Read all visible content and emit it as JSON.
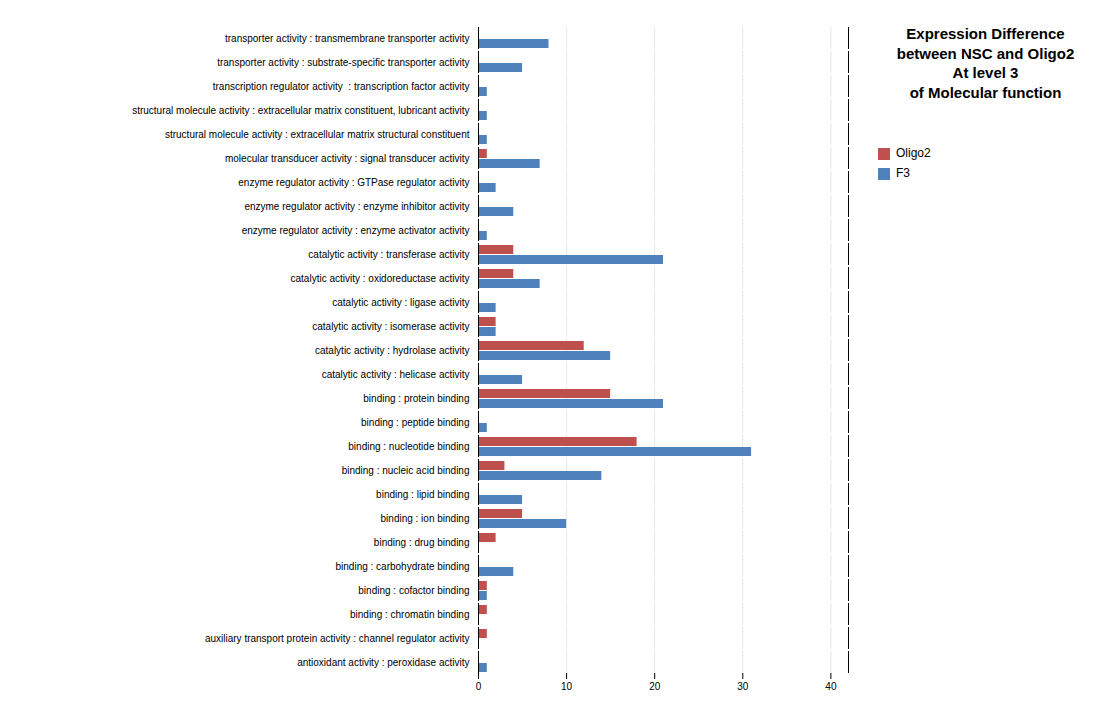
{
  "chart_data": {
    "type": "bar",
    "orientation": "horizontal",
    "title": "Expression Difference\nbetween NSC and Oligo2\nAt level 3\nof Molecular function",
    "categories": [
      "transporter activity : transmembrane transporter activity",
      "transporter activity : substrate-specific transporter activity",
      "transcription regulator activity  : transcription factor activity",
      "structural molecule activity : extracellular matrix constituent, lubricant activity",
      "structural molecule activity : extracellular matrix structural constituent",
      "molecular transducer activity : signal transducer activity",
      "enzyme regulator activity : GTPase regulator activity",
      "enzyme regulator activity : enzyme inhibitor activity",
      "enzyme regulator activity : enzyme activator activity",
      "catalytic activity : transferase activity",
      "catalytic activity : oxidoreductase activity",
      "catalytic activity : ligase activity",
      "catalytic activity : isomerase activity",
      "catalytic activity : hydrolase activity",
      "catalytic activity : helicase activity",
      "binding : protein binding",
      "binding : peptide binding",
      "binding : nucleotide binding",
      "binding : nucleic acid binding",
      "binding : lipid binding",
      "binding : ion binding",
      "binding : drug binding",
      "binding : carbohydrate binding",
      "binding : cofactor binding",
      "binding : chromatin binding",
      "auxiliary transport protein activity : channel regulator activity",
      "antioxidant activity : peroxidase activity"
    ],
    "series": [
      {
        "name": "Oligo2",
        "color": "#C0504D",
        "values": [
          0,
          0,
          0,
          0,
          0,
          1,
          0,
          0,
          0,
          4,
          4,
          0,
          2,
          12,
          0,
          15,
          0,
          18,
          3,
          0,
          5,
          2,
          0,
          1,
          1,
          1,
          0
        ]
      },
      {
        "name": "F3",
        "color": "#4F81BD",
        "values": [
          8,
          5,
          1,
          1,
          1,
          7,
          2,
          4,
          1,
          21,
          7,
          2,
          2,
          15,
          5,
          21,
          1,
          31,
          14,
          5,
          10,
          0,
          4,
          1,
          0,
          0,
          1
        ]
      }
    ],
    "xlim": [
      0,
      42
    ],
    "xticks": [
      0,
      10,
      20,
      30,
      40
    ],
    "grid": true,
    "legend": "right"
  }
}
